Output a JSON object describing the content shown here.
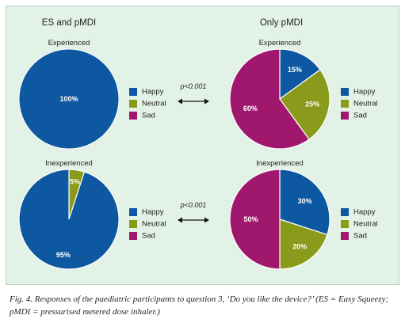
{
  "panels": {
    "left_title": "ES and pMDI",
    "right_title": "Only pMDI"
  },
  "legend_labels": [
    "Happy",
    "Neutral",
    "Sad"
  ],
  "colors": {
    "Happy": "#0d58a0",
    "Neutral": "#8a9b1c",
    "Sad": "#a0186e"
  },
  "comparisons": [
    "p<0.001",
    "p<0.001"
  ],
  "chart_data": [
    {
      "type": "pie",
      "title": "Experienced",
      "group": "ES and pMDI",
      "labels": [
        "Happy"
      ],
      "values": [
        100
      ],
      "value_labels": [
        "100%"
      ]
    },
    {
      "type": "pie",
      "title": "Experienced",
      "group": "Only pMDI",
      "labels": [
        "Happy",
        "Neutral",
        "Sad"
      ],
      "values": [
        15,
        25,
        60
      ],
      "value_labels": [
        "15%",
        "25%",
        "60%"
      ]
    },
    {
      "type": "pie",
      "title": "Inexperienced",
      "group": "ES and pMDI",
      "labels": [
        "Neutral",
        "Happy"
      ],
      "values": [
        5,
        95
      ],
      "value_labels": [
        "5%",
        "95%"
      ]
    },
    {
      "type": "pie",
      "title": "Inexperienced",
      "group": "Only pMDI",
      "labels": [
        "Happy",
        "Neutral",
        "Sad"
      ],
      "values": [
        30,
        20,
        50
      ],
      "value_labels": [
        "30%",
        "20%",
        "50%"
      ]
    }
  ],
  "caption": "Fig. 4. Responses of the paediatric participants to question 3, ‘Do you like the device?’ (ES = Easy Squeezy; pMDI = pressurised metered dose inhaler.)"
}
